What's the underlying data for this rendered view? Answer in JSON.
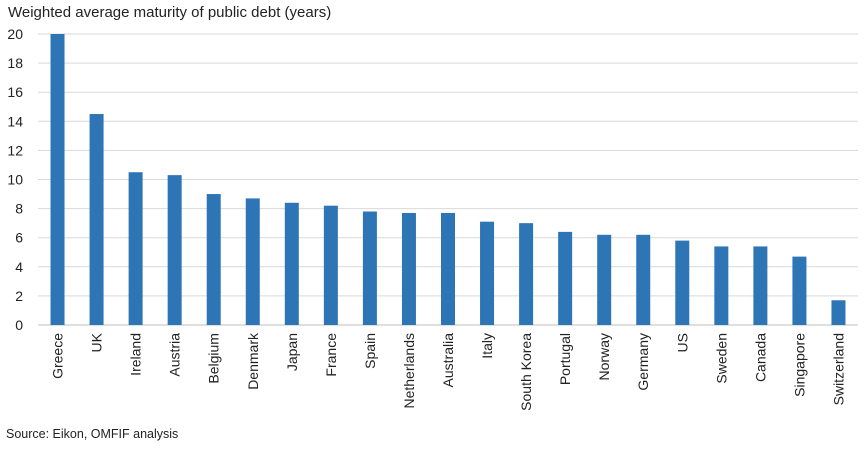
{
  "title": "Weighted average maturity of public debt (years)",
  "source": "Source: Eikon, OMFIF analysis",
  "chart_data": {
    "type": "bar",
    "title": "Weighted average maturity of public debt (years)",
    "xlabel": "",
    "ylabel": "",
    "ylim": [
      0,
      20
    ],
    "yticks": [
      0,
      2,
      4,
      6,
      8,
      10,
      12,
      14,
      16,
      18,
      20
    ],
    "grid": true,
    "legend": "none",
    "bar_color": "#2e75b6",
    "grid_color": "#d9d9d9",
    "categories": [
      "Greece",
      "UK",
      "Ireland",
      "Austria",
      "Belgium",
      "Denmark",
      "Japan",
      "France",
      "Spain",
      "Netherlands",
      "Australia",
      "Italy",
      "South Korea",
      "Portugal",
      "Norway",
      "Germany",
      "US",
      "Sweden",
      "Canada",
      "Singapore",
      "Switzerland"
    ],
    "values": [
      20.0,
      14.5,
      10.5,
      10.3,
      9.0,
      8.7,
      8.4,
      8.2,
      7.8,
      7.7,
      7.7,
      7.1,
      7.0,
      6.4,
      6.2,
      6.2,
      5.8,
      5.4,
      5.4,
      4.7,
      1.7
    ]
  }
}
